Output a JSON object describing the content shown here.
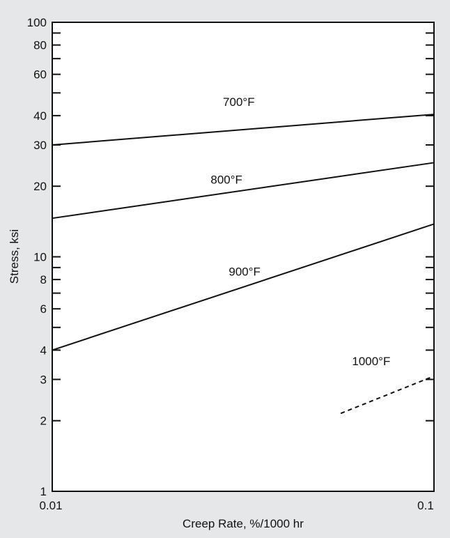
{
  "chart_data": {
    "type": "line",
    "title": "",
    "xlabel": "Creep Rate, %/1000 hr",
    "ylabel": "Stress, ksi",
    "x_scale": "log",
    "y_scale": "log",
    "xlim": [
      0.01,
      0.1
    ],
    "ylim": [
      1,
      100
    ],
    "grid": false,
    "x_ticks": [
      {
        "value": 0.01,
        "label": "0.01"
      },
      {
        "value": 0.1,
        "label": "0.1"
      }
    ],
    "y_ticks_labeled": [
      {
        "value": 1,
        "label": "1"
      },
      {
        "value": 2,
        "label": "2"
      },
      {
        "value": 3,
        "label": "3"
      },
      {
        "value": 4,
        "label": "4"
      },
      {
        "value": 6,
        "label": "6"
      },
      {
        "value": 8,
        "label": "8"
      },
      {
        "value": 10,
        "label": "10"
      },
      {
        "value": 20,
        "label": "20"
      },
      {
        "value": 30,
        "label": "30"
      },
      {
        "value": 40,
        "label": "40"
      },
      {
        "value": 60,
        "label": "60"
      },
      {
        "value": 80,
        "label": "80"
      },
      {
        "value": 100,
        "label": "100"
      }
    ],
    "y_ticks_minor": [
      5,
      7,
      9,
      50,
      70,
      90
    ],
    "series": [
      {
        "name": "700°F",
        "style": "solid",
        "x": [
          0.01,
          0.1
        ],
        "y": [
          30,
          40.5
        ],
        "label_at": [
          0.028,
          44
        ]
      },
      {
        "name": "800°F",
        "style": "solid",
        "x": [
          0.01,
          0.1
        ],
        "y": [
          14.6,
          25.2
        ],
        "label_at": [
          0.026,
          20.5
        ]
      },
      {
        "name": "900°F",
        "style": "solid",
        "x": [
          0.01,
          0.1
        ],
        "y": [
          4,
          13.8
        ],
        "label_at": [
          0.029,
          8.3
        ]
      },
      {
        "name": "1000°F",
        "style": "dashed",
        "x": [
          0.057,
          0.1
        ],
        "y": [
          2.15,
          3.1
        ],
        "label_at": [
          0.061,
          3.45
        ]
      }
    ],
    "colors": {
      "line": "#111111",
      "background": "#e6e7e8",
      "plot_area": "#ffffff"
    }
  }
}
